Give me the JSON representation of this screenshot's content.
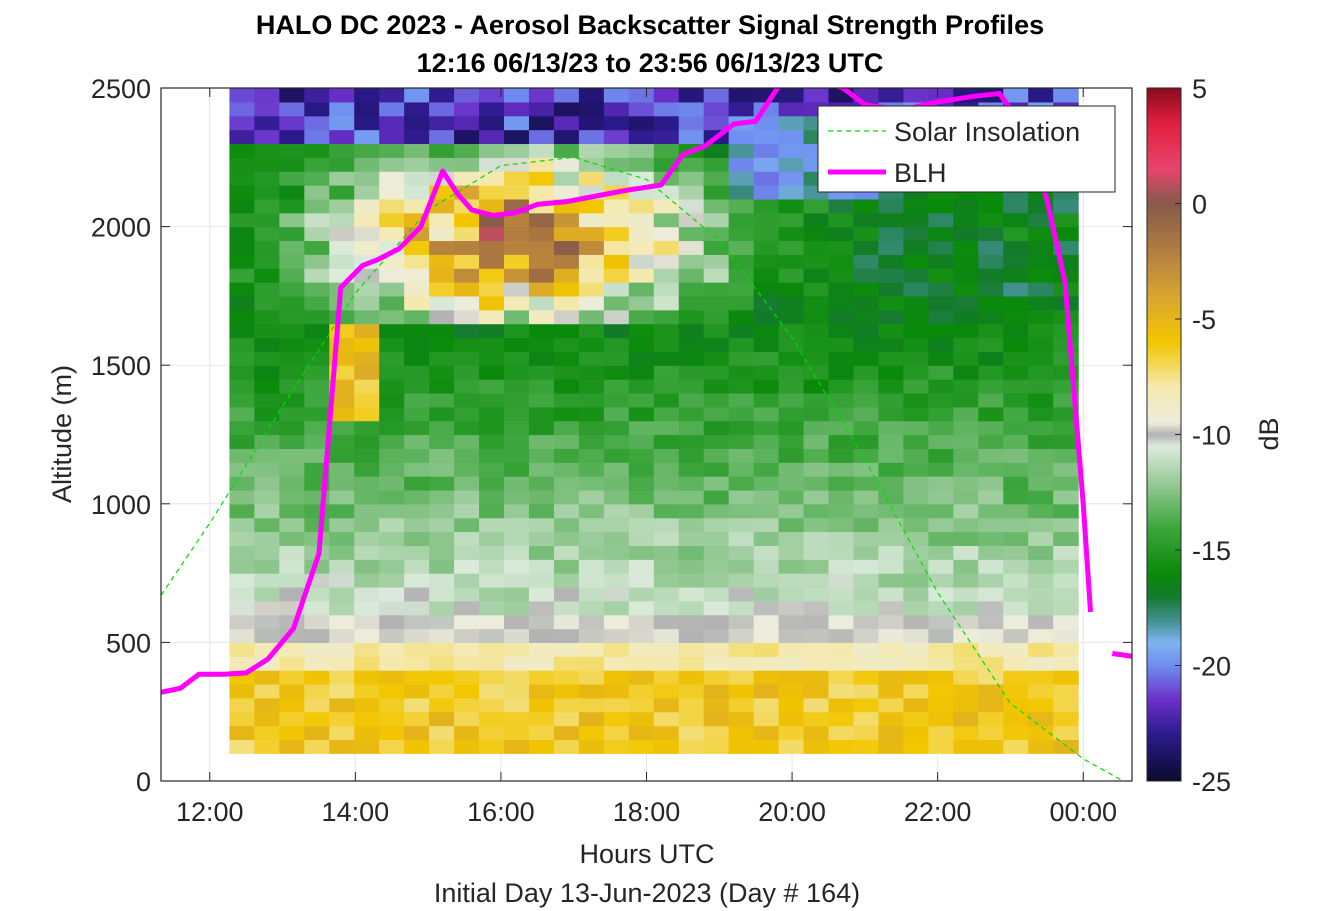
{
  "figure": {
    "title_line1": "HALO DC 2023 - Aerosol Backscatter Signal Strength Profiles",
    "title_line2": "12:16 06/13/23 to 23:56 06/13/23  UTC",
    "xlabel": "Hours UTC",
    "subtitle": "Initial Day 13-Jun-2023 (Day # 164)",
    "ylabel": "Altitude (m)",
    "colorbar_label": "dB"
  },
  "chart_data": {
    "type": "heatmap",
    "x_unit": "hours UTC (values > 24 are after midnight of 14-Jun)",
    "xlim": [
      11.33,
      24.67
    ],
    "ylim": [
      0,
      2500
    ],
    "x_ticks": [
      12,
      14,
      16,
      18,
      20,
      22,
      24
    ],
    "x_tick_labels": [
      "12:00",
      "14:00",
      "16:00",
      "18:00",
      "20:00",
      "22:00",
      "00:00"
    ],
    "y_ticks": [
      0,
      500,
      1000,
      1500,
      2000,
      2500
    ],
    "y_tick_labels": [
      "0",
      "500",
      "1000",
      "1500",
      "2000",
      "2500"
    ],
    "grid": true,
    "heatmap": {
      "x_start": 12.27,
      "x_end": 23.93,
      "n_columns": 34,
      "y_bottom": 100,
      "y_top": 2500,
      "n_rows": 48,
      "value_unit": "dB",
      "description_of_values": "signal strength ~ -7 dB below 400 m, ~-10 dB near 500-600 m, decreasing to ~-16 dB aloft; mixed/elevated values (-8 to +2 dB) in the 1700-2300 m band from 14:00-18:00; ~-20 to -25 dB above ~2300 m"
    },
    "colorbar": {
      "clim": [
        -25,
        5
      ],
      "ticks": [
        5,
        0,
        -5,
        -10,
        -15,
        -20,
        -25
      ],
      "tick_labels": [
        "5",
        "0",
        "-5",
        "-10",
        "-15",
        "-20",
        "-25"
      ],
      "label": "dB",
      "colors": [
        {
          "v": -25,
          "c": "#0b0a2e"
        },
        {
          "v": -23,
          "c": "#2b1a8c"
        },
        {
          "v": -21.5,
          "c": "#6a2fc8"
        },
        {
          "v": -20,
          "c": "#6e8ef0"
        },
        {
          "v": -19,
          "c": "#7fb4f0"
        },
        {
          "v": -18,
          "c": "#3f8f8a"
        },
        {
          "v": -17,
          "c": "#137a2a"
        },
        {
          "v": -16,
          "c": "#0a8a0a"
        },
        {
          "v": -14,
          "c": "#3ea63e"
        },
        {
          "v": -12,
          "c": "#9ccc9c"
        },
        {
          "v": -10.5,
          "c": "#dcebdc"
        },
        {
          "v": -10,
          "c": "#b2b2b2"
        },
        {
          "v": -9.5,
          "c": "#ececdc"
        },
        {
          "v": -8,
          "c": "#f4eab0"
        },
        {
          "v": -6,
          "c": "#f2c600"
        },
        {
          "v": -4,
          "c": "#d8a530"
        },
        {
          "v": -2,
          "c": "#b07c40"
        },
        {
          "v": 0,
          "c": "#875a4a"
        },
        {
          "v": 1.5,
          "c": "#e8456c"
        },
        {
          "v": 3.5,
          "c": "#e01f3f"
        },
        {
          "v": 5,
          "c": "#8a0a1c"
        }
      ]
    },
    "legend": {
      "placement": "top-right",
      "entries": [
        "Solar Insolation",
        "BLH"
      ]
    },
    "series": [
      {
        "name": "Solar Insolation",
        "style": "dashed",
        "color": "#00dd00",
        "x": [
          11.33,
          12.0,
          13.0,
          14.0,
          15.0,
          16.0,
          17.0,
          18.0,
          19.0,
          20.0,
          21.0,
          22.0,
          23.0,
          24.0,
          24.55
        ],
        "y": [
          670,
          930,
          1350,
          1760,
          2060,
          2220,
          2250,
          2170,
          1950,
          1600,
          1160,
          680,
          280,
          80,
          0
        ]
      },
      {
        "name": "BLH",
        "style": "solid",
        "color": "#ff00ff",
        "x": [
          11.33,
          11.6,
          11.85,
          12.2,
          12.5,
          12.8,
          13.15,
          13.5,
          13.8,
          14.1,
          14.3,
          14.6,
          14.9,
          15.2,
          15.4,
          15.6,
          15.9,
          16.2,
          16.5,
          16.9,
          17.3,
          17.7,
          18.2,
          18.5,
          18.8,
          19.2,
          19.5,
          19.8,
          20.0,
          20.7,
          21.0,
          21.5,
          22.0,
          22.5,
          22.85,
          23.2,
          23.5,
          23.75,
          24.0,
          24.1
        ],
        "y": [
          320,
          335,
          385,
          385,
          390,
          440,
          550,
          820,
          1780,
          1860,
          1880,
          1920,
          2000,
          2200,
          2120,
          2060,
          2040,
          2050,
          2080,
          2090,
          2110,
          2130,
          2150,
          2260,
          2290,
          2370,
          2380,
          2500,
          2560,
          2500,
          2440,
          2420,
          2450,
          2470,
          2480,
          2350,
          2100,
          1800,
          1000,
          610
        ],
        "extra_segment": {
          "x": [
            24.4,
            24.67
          ],
          "y": [
            460,
            450
          ]
        }
      }
    ]
  }
}
